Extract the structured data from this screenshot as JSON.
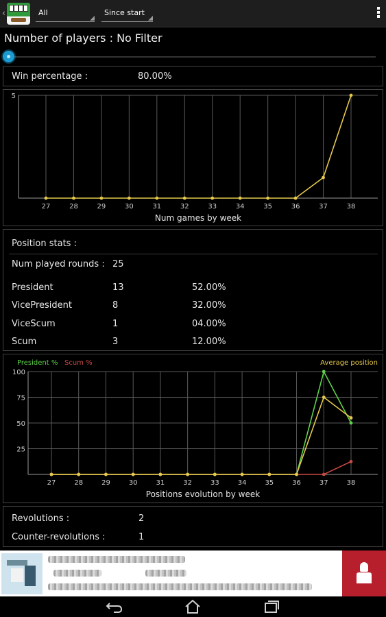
{
  "colors": {
    "accent": "#1b9bd1",
    "president_line": "#5ed34a",
    "scum_line": "#c94a43",
    "average_line": "#e6c94d",
    "games_line": "#e6c94d",
    "grid": "#5a5a5a",
    "axis_text": "#d0d0d0"
  },
  "actionbar": {
    "app_icon": "app-logo-cards-icon",
    "filter_spinner_value": "All",
    "period_spinner_value": "Since start",
    "overflow_icon": "overflow-menu-icon"
  },
  "filter_title": "Number of players : No Filter",
  "slider": {
    "value_fraction": 0
  },
  "win": {
    "label": "Win percentage :",
    "value": "80.00%"
  },
  "games_chart": {
    "xlabel": "Num games by week",
    "y_tick": "5"
  },
  "position_stats": {
    "title": "Position stats :",
    "rounds_label": "Num played rounds :",
    "rounds_value": "25",
    "rows": [
      {
        "name": "President",
        "count": "13",
        "pct": "52.00%"
      },
      {
        "name": "VicePresident",
        "count": "8",
        "pct": "32.00%"
      },
      {
        "name": "ViceScum",
        "count": "1",
        "pct": "04.00%"
      },
      {
        "name": "Scum",
        "count": "3",
        "pct": "12.00%"
      }
    ]
  },
  "evolution_chart": {
    "legend_president": "President %",
    "legend_scum": "Scum %",
    "legend_average": "Average position",
    "xlabel": "Positions evolution by week",
    "y_ticks": [
      "100",
      "75",
      "50",
      "25"
    ]
  },
  "revolutions": {
    "label": "Revolutions :",
    "value": "2",
    "counter_label": "Counter-revolutions :",
    "counter_value": "1"
  },
  "navbar": {
    "back_icon": "back-icon",
    "home_icon": "home-icon",
    "recents_icon": "recent-apps-icon"
  },
  "chart_data": [
    {
      "type": "line",
      "xlabel": "Num games by week",
      "x": [
        27,
        28,
        29,
        30,
        31,
        32,
        33,
        34,
        35,
        36,
        37,
        38
      ],
      "series": [
        {
          "values": [
            0,
            0,
            0,
            0,
            0,
            0,
            0,
            0,
            0,
            0,
            1,
            5
          ]
        }
      ],
      "ylim": [
        0,
        5
      ],
      "yticks": [
        5
      ],
      "grid": true
    },
    {
      "type": "line",
      "xlabel": "Positions evolution by week",
      "x": [
        27,
        28,
        29,
        30,
        31,
        32,
        33,
        34,
        35,
        36,
        37,
        38
      ],
      "series": [
        {
          "name": "President %",
          "color": "#5ed34a",
          "values": [
            0,
            0,
            0,
            0,
            0,
            0,
            0,
            0,
            0,
            0,
            100,
            50
          ]
        },
        {
          "name": "Scum %",
          "color": "#c94a43",
          "values": [
            0,
            0,
            0,
            0,
            0,
            0,
            0,
            0,
            0,
            0,
            0,
            12.5
          ]
        },
        {
          "name": "Average position",
          "color": "#e6c94d",
          "values": [
            0,
            0,
            0,
            0,
            0,
            0,
            0,
            0,
            0,
            0,
            75,
            55
          ]
        }
      ],
      "ylim": [
        0,
        100
      ],
      "yticks": [
        100,
        75,
        50,
        25
      ],
      "grid": true,
      "legend": "top"
    }
  ]
}
